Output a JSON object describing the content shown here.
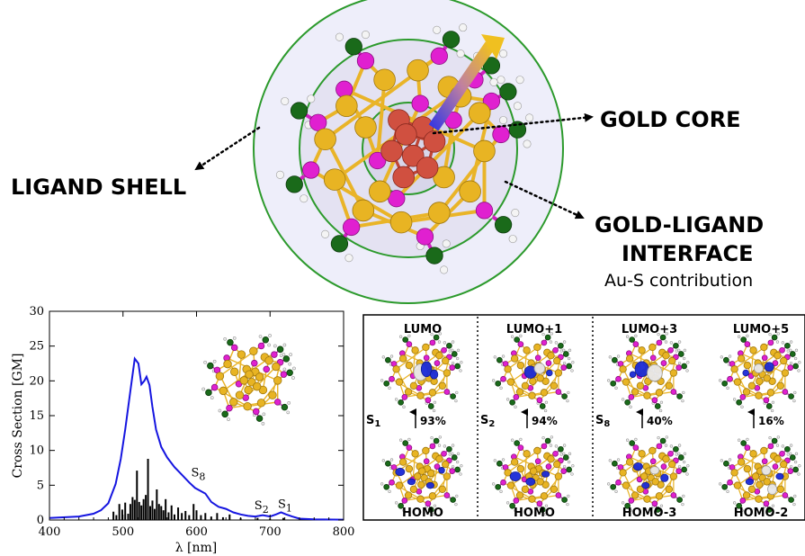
{
  "callouts": {
    "ligand_shell": "LIGAND SHELL",
    "gold_core": "GOLD CORE",
    "interface_line1": "GOLD-LIGAND",
    "interface_line2": "INTERFACE",
    "interface_sub": "Au-S contribution"
  },
  "chart_data": {
    "type": "line",
    "xlabel": "λ [nm]",
    "ylabel": "Cross Section [GM]",
    "xlim": [
      400,
      800
    ],
    "ylim": [
      0,
      30
    ],
    "xticks": [
      400,
      500,
      600,
      700,
      800
    ],
    "yticks": [
      0,
      5,
      10,
      15,
      20,
      25,
      30
    ],
    "series": [
      {
        "style": "line",
        "color": "#1515e0",
        "x": [
          400,
          440,
          460,
          470,
          480,
          490,
          497,
          503,
          510,
          516,
          521,
          525,
          529,
          532,
          536,
          540,
          545,
          552,
          560,
          570,
          580,
          590,
          598,
          605,
          612,
          620,
          630,
          640,
          650,
          660,
          670,
          680,
          685,
          690,
          700,
          708,
          715,
          722,
          730,
          740,
          760,
          800
        ],
        "y": [
          0.3,
          0.5,
          0.9,
          1.4,
          2.4,
          5.2,
          8.8,
          13,
          18.5,
          23.2,
          22.5,
          19.5,
          20,
          20.6,
          19.4,
          16.3,
          13,
          10.5,
          9,
          7.6,
          6.5,
          5.4,
          4.6,
          4.2,
          3.8,
          2.6,
          1.9,
          1.6,
          1.1,
          0.8,
          0.6,
          0.5,
          0.6,
          0.7,
          0.5,
          0.8,
          1.1,
          0.8,
          0.5,
          0.2,
          0.1,
          0.05
        ]
      },
      {
        "style": "stick",
        "color": "#000000",
        "x": [
          487,
          491,
          495,
          499,
          503,
          507,
          510,
          513,
          516,
          519,
          522,
          525,
          528,
          531,
          534,
          537,
          540,
          543,
          546,
          549,
          552,
          555,
          558,
          562,
          566,
          570,
          575,
          580,
          585,
          590,
          596,
          600,
          606,
          612,
          620,
          628,
          636,
          645,
          660,
          683,
          700,
          718
        ],
        "y": [
          1.2,
          0.7,
          2.3,
          1.5,
          2.5,
          0.9,
          2.3,
          3.3,
          2.9,
          7.1,
          2.6,
          2.1,
          3.0,
          3.6,
          8.8,
          2.0,
          2.8,
          1.6,
          4.4,
          2.3,
          2.0,
          1.4,
          3.0,
          1.1,
          2.1,
          0.8,
          1.8,
          1.0,
          1.3,
          0.7,
          2.3,
          1.4,
          0.7,
          1.0,
          0.5,
          1.0,
          0.4,
          0.8,
          0.3,
          0.3,
          0.2,
          0.3
        ]
      }
    ],
    "annotations": [
      {
        "text": "S",
        "sub": "8",
        "x": 600,
        "y": 6.0
      },
      {
        "text": "S",
        "sub": "2",
        "x": 686,
        "y": 1.3
      },
      {
        "text": "S",
        "sub": "1",
        "x": 718,
        "y": 1.5
      }
    ]
  },
  "orbitals": {
    "panels": [
      {
        "top": "LUMO",
        "bottom": "HOMO",
        "state": "S",
        "state_sub": "1",
        "pct": "93%"
      },
      {
        "top": "LUMO+1",
        "bottom": "HOMO",
        "state": "S",
        "state_sub": "2",
        "pct": "94%"
      },
      {
        "top": "LUMO+3",
        "bottom": "HOMO-3",
        "state": "S",
        "state_sub": "8",
        "pct": "40%"
      },
      {
        "top": "LUMO+5",
        "bottom": "HOMO-2",
        "state": "",
        "state_sub": "",
        "pct": "16%"
      }
    ]
  },
  "colors": {
    "gold": "#e8b423",
    "sulfur": "#e020d0",
    "carbon": "#1a6a1a",
    "core": "#d05040",
    "spectrum": "#1515e0",
    "orbital_neg": "#1a2ad8",
    "orbital_pos": "#e8e8ec"
  }
}
